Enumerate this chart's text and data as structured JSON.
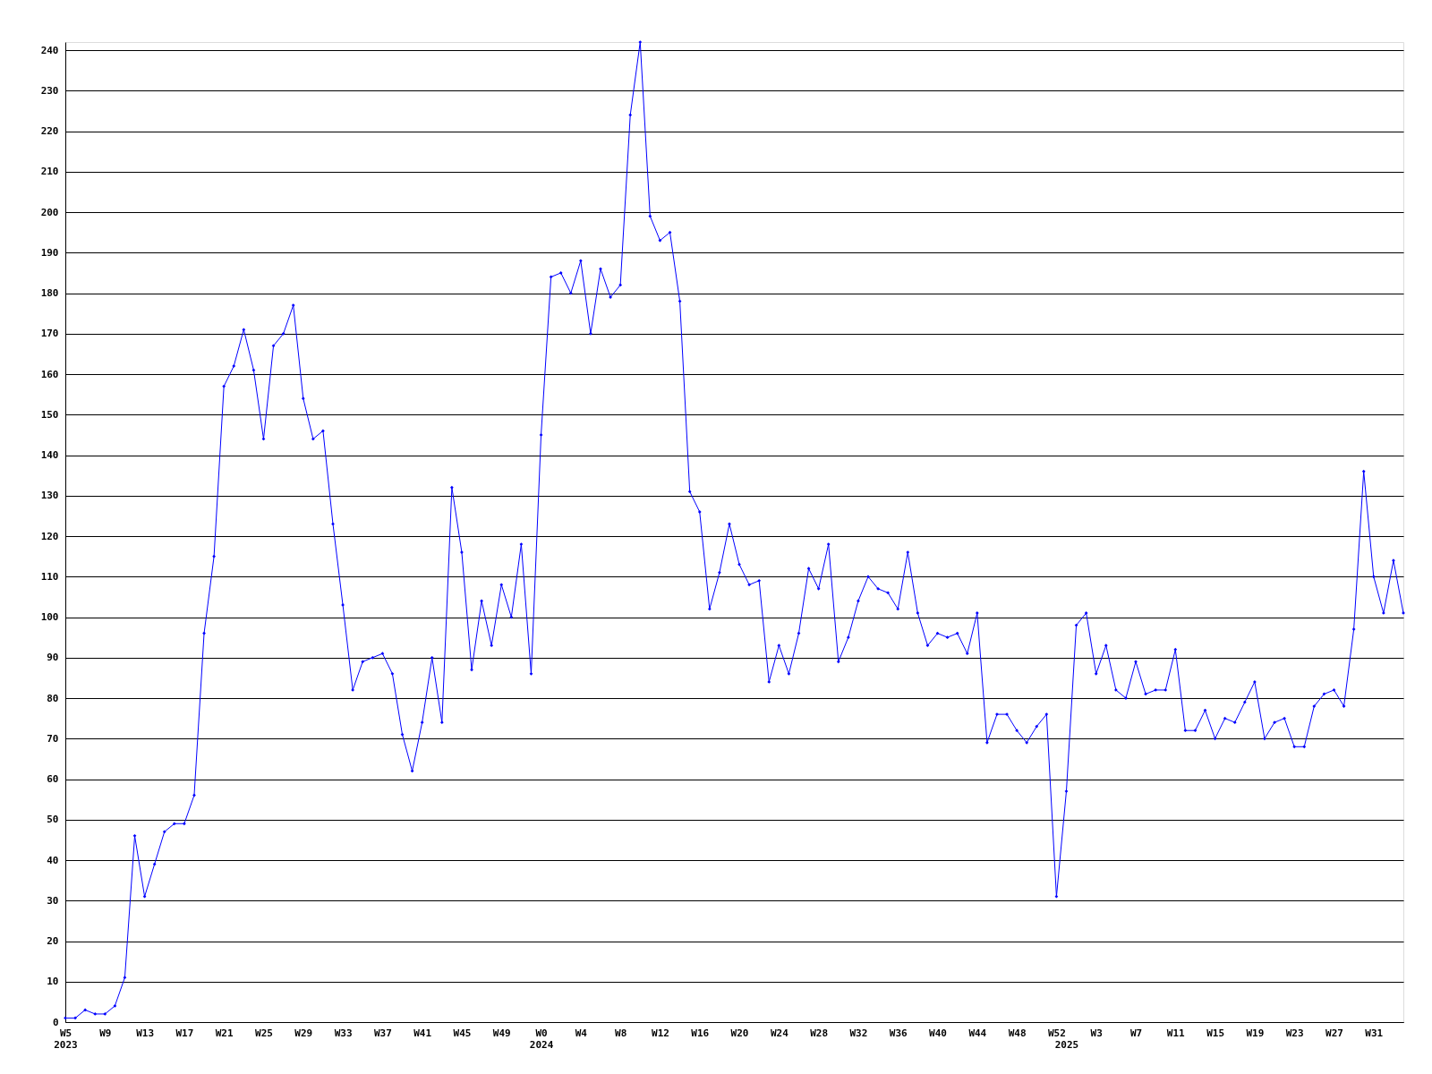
{
  "chart_data": {
    "type": "line",
    "categories": [
      "W5\n2023",
      null,
      null,
      null,
      "W9",
      null,
      null,
      null,
      "W13",
      null,
      null,
      null,
      "W17",
      null,
      null,
      null,
      "W21",
      null,
      null,
      null,
      "W25",
      null,
      null,
      null,
      "W29",
      null,
      null,
      null,
      "W33",
      null,
      null,
      null,
      "W37",
      null,
      null,
      null,
      "W41",
      null,
      null,
      null,
      "W45",
      null,
      null,
      null,
      "W49",
      null,
      null,
      null,
      "W0\n2024",
      null,
      null,
      null,
      "W4",
      null,
      null,
      null,
      "W8",
      null,
      null,
      null,
      "W12",
      null,
      null,
      null,
      "W16",
      null,
      null,
      null,
      "W20",
      null,
      null,
      null,
      "W24",
      null,
      null,
      null,
      "W28",
      null,
      null,
      null,
      "W32",
      null,
      null,
      null,
      "W36",
      null,
      null,
      null,
      "W40",
      null,
      null,
      null,
      "W44",
      null,
      null,
      null,
      "W48",
      null,
      null,
      null,
      "W52",
      "\n2025",
      null,
      null,
      "W3",
      null,
      null,
      null,
      "W7",
      null,
      null,
      null,
      "W11",
      null,
      null,
      null,
      "W15",
      null,
      null,
      null,
      "W19",
      null,
      null,
      null,
      "W23",
      null,
      null,
      null,
      "W27",
      null,
      null,
      null,
      "W31",
      null,
      null,
      null
    ],
    "series": [
      {
        "color": "#0000ff",
        "values": [
          1,
          1,
          3,
          2,
          2,
          4,
          11,
          46,
          31,
          39,
          47,
          49,
          49,
          56,
          96,
          115,
          157,
          162,
          171,
          161,
          144,
          167,
          170,
          177,
          154,
          144,
          146,
          123,
          103,
          82,
          89,
          90,
          91,
          86,
          71,
          62,
          74,
          90,
          74,
          132,
          116,
          87,
          104,
          93,
          108,
          100,
          118,
          86,
          145,
          184,
          185,
          180,
          188,
          170,
          186,
          179,
          182,
          224,
          242,
          199,
          193,
          195,
          178,
          131,
          126,
          102,
          111,
          123,
          113,
          108,
          109,
          84,
          93,
          86,
          96,
          112,
          107,
          118,
          89,
          95,
          104,
          110,
          107,
          106,
          102,
          116,
          101,
          93,
          96,
          95,
          96,
          91,
          101,
          69,
          76,
          76,
          72,
          69,
          73,
          76,
          31,
          57,
          98,
          101,
          86,
          93,
          82,
          80,
          89,
          81,
          82,
          82,
          92,
          72,
          72,
          77,
          70,
          75,
          74,
          79,
          84,
          70,
          74,
          75,
          68,
          68,
          78,
          81,
          82,
          78,
          97,
          136,
          110,
          101,
          114,
          101
        ]
      }
    ],
    "ylim": [
      0,
      242
    ],
    "yticks": [
      0,
      10,
      20,
      30,
      40,
      50,
      60,
      70,
      80,
      90,
      100,
      110,
      120,
      130,
      140,
      150,
      160,
      170,
      180,
      190,
      200,
      210,
      220,
      230,
      240
    ],
    "grid": "y",
    "marker": "diamond",
    "line_style": "solid"
  }
}
